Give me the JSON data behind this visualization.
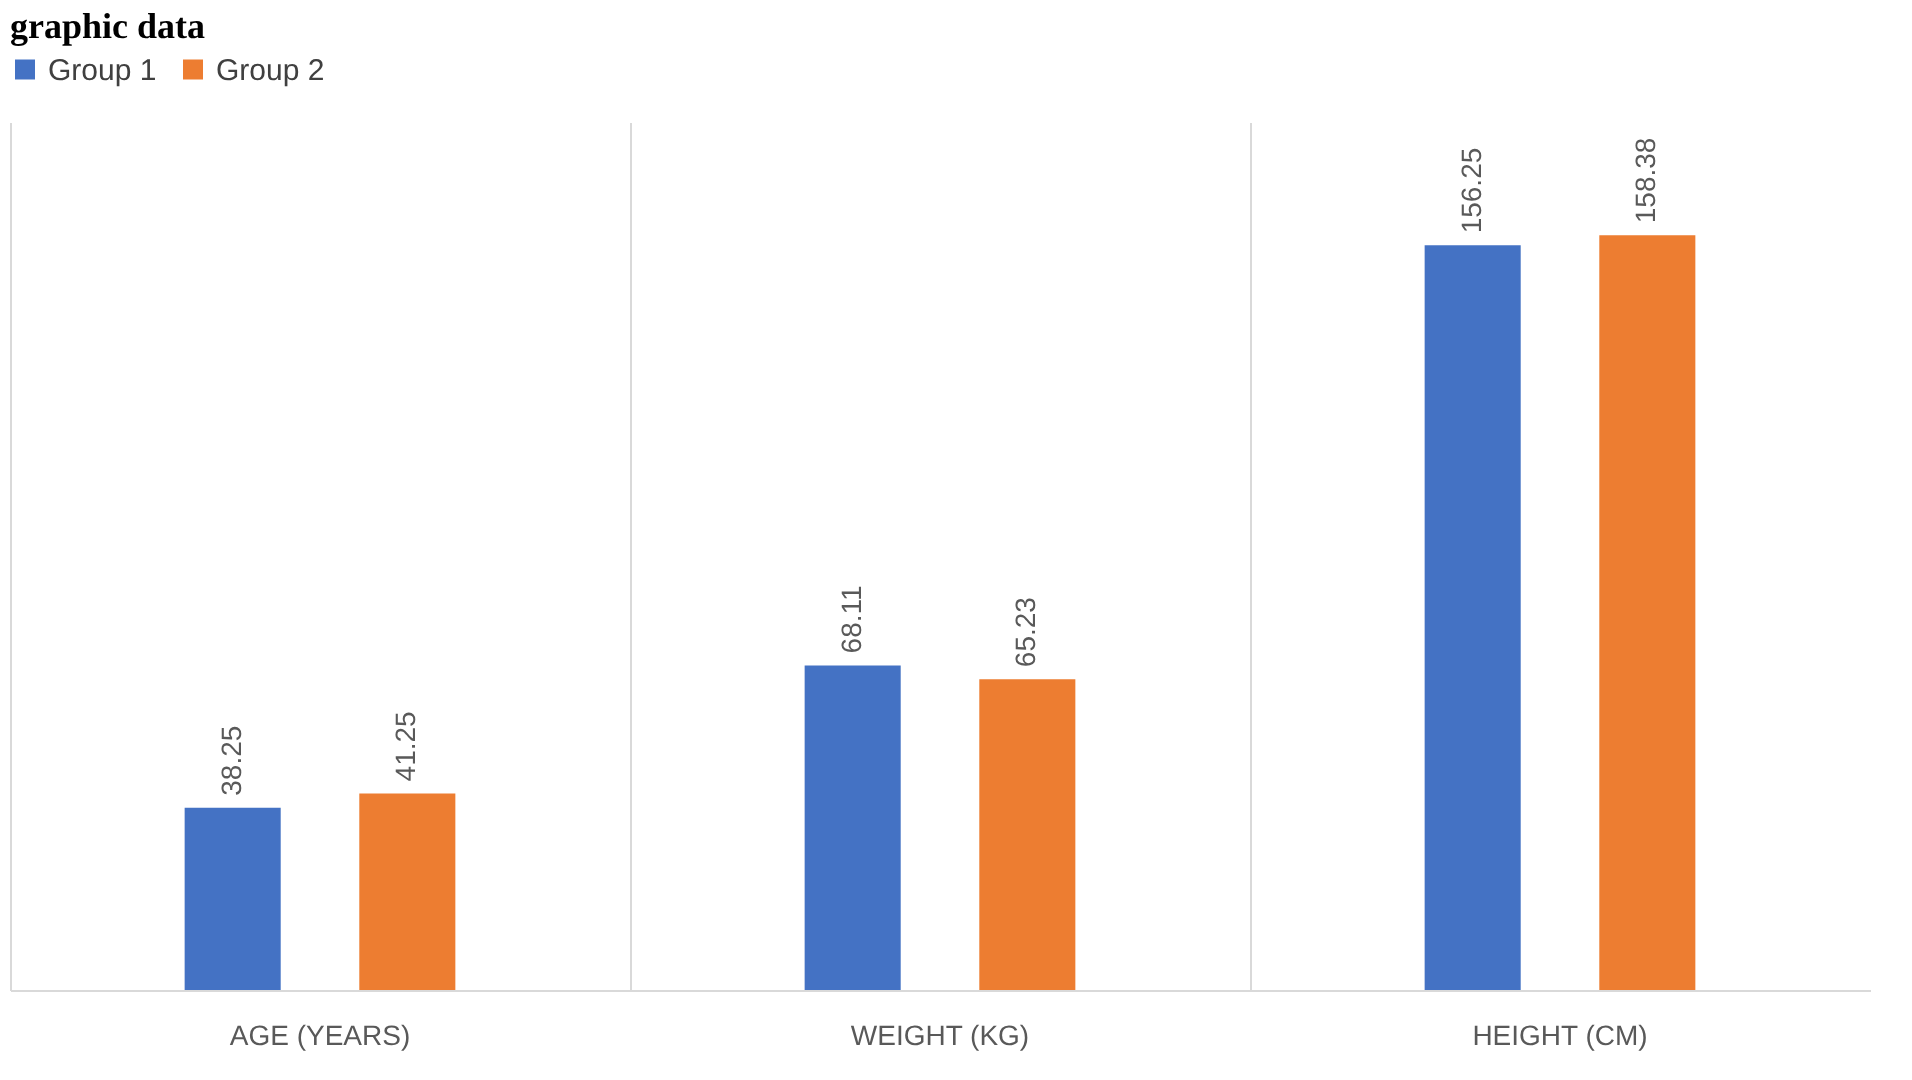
{
  "chart_data": {
    "type": "bar",
    "title": "graphic data",
    "categories": [
      "AGE (YEARS)",
      "WEIGHT (KG)",
      "HEIGHT (CM)"
    ],
    "series": [
      {
        "name": "Group 1",
        "color": "#4472c4",
        "values": [
          38.25,
          68.11,
          156.25
        ]
      },
      {
        "name": "Group 2",
        "color": "#ed7d31",
        "values": [
          41.25,
          65.23,
          158.38
        ]
      }
    ],
    "data_labels": true,
    "grid": "x",
    "legend": "top"
  }
}
